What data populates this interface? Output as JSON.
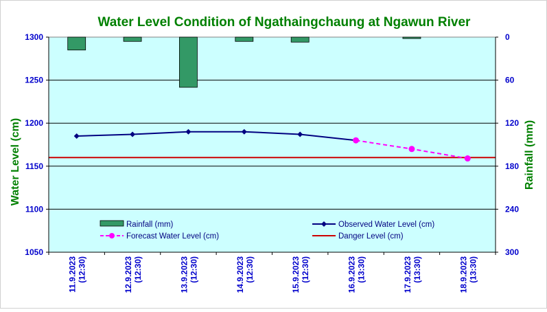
{
  "chart_data": {
    "type": "line",
    "title": "Water Level Condition of  Ngathaingchaung at Ngawun River",
    "ylabel": "Water  Level (cm)",
    "y2label": "Rainfall (mm)",
    "categories": [
      [
        "11.9.2023",
        "(12:30)"
      ],
      [
        "12.9.2023",
        "(12:30)"
      ],
      [
        "13.9.2023",
        "(12:30)"
      ],
      [
        "14.9.2023",
        "(12:30)"
      ],
      [
        "15.9.2023",
        "(12:30)"
      ],
      [
        "16.9.2023",
        "(13:30)"
      ],
      [
        "17.9.2023",
        "(13:30)"
      ],
      [
        "18.9.2023",
        "(13:30)"
      ]
    ],
    "ylim": [
      1050,
      1300
    ],
    "yticks": [
      1050,
      1100,
      1150,
      1200,
      1250,
      1300
    ],
    "y2lim": [
      0,
      300
    ],
    "y2ticks": [
      0,
      60,
      120,
      180,
      240,
      300
    ],
    "y2_inverted": true,
    "grid": true,
    "series": [
      {
        "name": "Rainfall (mm)",
        "type": "bar",
        "axis": "right",
        "color": "#339966",
        "values": [
          18,
          6,
          70,
          6,
          7,
          null,
          2,
          null
        ]
      },
      {
        "name": "Observed Water Level (cm)",
        "type": "line",
        "axis": "left",
        "color": "#000080",
        "marker": "diamond",
        "values": [
          1185,
          1187,
          1190,
          1190,
          1187,
          1180,
          null,
          null
        ]
      },
      {
        "name": "Forecast Water Level (cm)",
        "type": "line",
        "axis": "left",
        "color": "#ff00ff",
        "dashed": true,
        "marker": "circle",
        "values": [
          null,
          null,
          null,
          null,
          null,
          1180,
          1170,
          1159
        ]
      },
      {
        "name": "Danger Level (cm)",
        "type": "line",
        "axis": "left",
        "color": "#cc0000",
        "constant": 1160
      }
    ],
    "legend_position": "inside-bottom",
    "colors": {
      "plot_background": "#ccffff",
      "title": "#008000",
      "axis_title": "#008000",
      "tick_labels": "#0000cc"
    }
  }
}
